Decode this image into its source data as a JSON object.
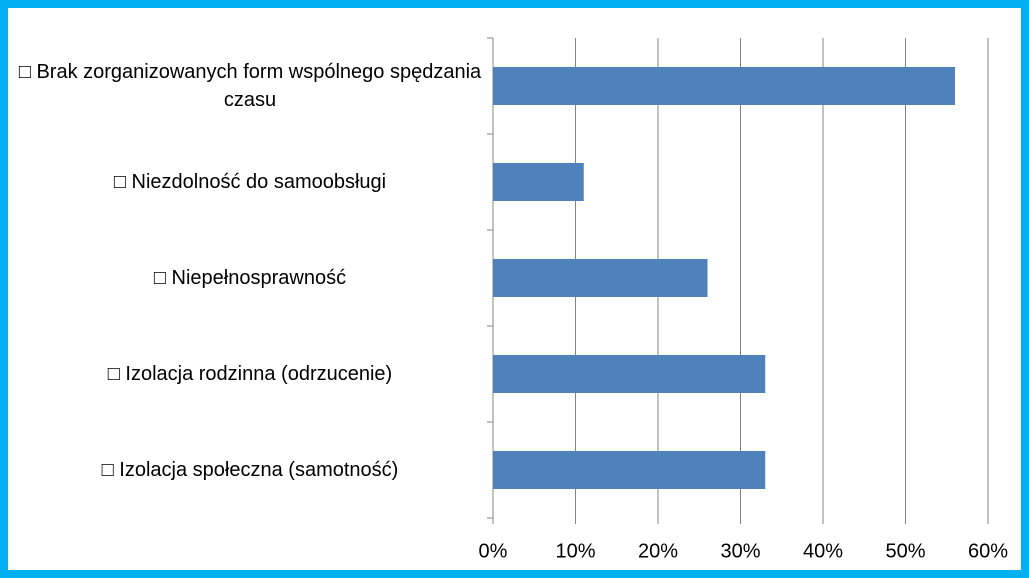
{
  "chart_data": {
    "type": "bar",
    "orientation": "horizontal",
    "categories": [
      "□ Brak zorganizowanych form wspólnego spędzania czasu",
      "□ Niezdolność do samoobsługi",
      "□ Niepełnosprawność",
      "□ Izolacja rodzinna (odrzucenie)",
      "□ Izolacja społeczna (samotność)"
    ],
    "values": [
      56,
      11,
      26,
      33,
      33
    ],
    "color": "#4f81bd",
    "xlim": [
      0,
      60
    ],
    "xticks": [
      {
        "value": 0,
        "label": "0%"
      },
      {
        "value": 10,
        "label": "10%"
      },
      {
        "value": 20,
        "label": "20%"
      },
      {
        "value": 30,
        "label": "30%"
      },
      {
        "value": 40,
        "label": "40%"
      },
      {
        "value": 50,
        "label": "50%"
      },
      {
        "value": 60,
        "label": "60%"
      }
    ],
    "grid": true
  }
}
